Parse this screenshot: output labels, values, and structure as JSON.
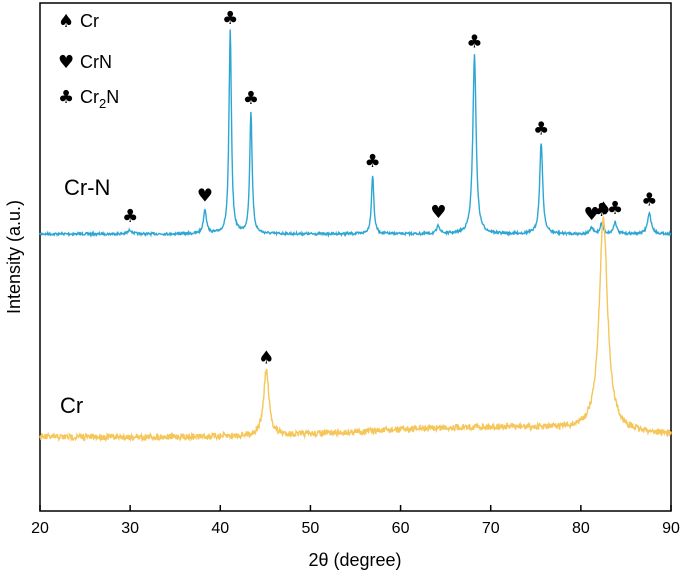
{
  "chart_data": {
    "type": "line",
    "title": "",
    "xlabel": "2θ (degree)",
    "ylabel": "Intensity (a.u.)",
    "xlim": [
      20,
      90
    ],
    "x_ticks": [
      "20",
      "30",
      "40",
      "50",
      "60",
      "70",
      "80",
      "90"
    ],
    "grid": false,
    "y_tick_labels": false,
    "legend": {
      "position": "top-left",
      "items": [
        {
          "symbol": "♠",
          "label": "Cr",
          "phase": "Cr"
        },
        {
          "symbol": "♥",
          "label": "CrN",
          "phase": "CrN"
        },
        {
          "symbol": "♣",
          "label": "Cr",
          "subscript": "2",
          "label_suffix": "N",
          "phase": "Cr2N"
        }
      ]
    },
    "series": [
      {
        "name": "Cr-N",
        "color": "#2ea6d3",
        "baseline": 0.0,
        "peaks": [
          {
            "x": 30.0,
            "height": 0.02,
            "width": 0.25,
            "marker": "♣"
          },
          {
            "x": 38.3,
            "height": 0.12,
            "width": 0.2,
            "marker": "♥"
          },
          {
            "x": 41.1,
            "height": 1.0,
            "width": 0.16,
            "marker": "♣"
          },
          {
            "x": 43.4,
            "height": 0.6,
            "width": 0.16,
            "marker": "♣"
          },
          {
            "x": 56.9,
            "height": 0.29,
            "width": 0.16,
            "marker": "♣"
          },
          {
            "x": 64.2,
            "height": 0.04,
            "width": 0.2,
            "marker": "♥"
          },
          {
            "x": 68.2,
            "height": 0.88,
            "width": 0.22,
            "marker": "♣"
          },
          {
            "x": 75.6,
            "height": 0.45,
            "width": 0.2,
            "marker": "♣"
          },
          {
            "x": 81.2,
            "height": 0.03,
            "width": 0.2,
            "marker": "♥"
          },
          {
            "x": 82.3,
            "height": 0.05,
            "width": 0.2,
            "marker": "♣"
          },
          {
            "x": 83.8,
            "height": 0.06,
            "width": 0.2,
            "marker": "♣"
          },
          {
            "x": 87.6,
            "height": 0.1,
            "width": 0.25,
            "marker": "♣"
          }
        ]
      },
      {
        "name": "Cr",
        "color": "#f5c65a",
        "baseline": 0.0,
        "peaks": [
          {
            "x": 45.1,
            "height": 0.22,
            "width": 0.35,
            "marker": "♠"
          },
          {
            "x": 82.5,
            "height": 0.72,
            "width": 0.55,
            "marker": "♠"
          }
        ]
      }
    ]
  }
}
